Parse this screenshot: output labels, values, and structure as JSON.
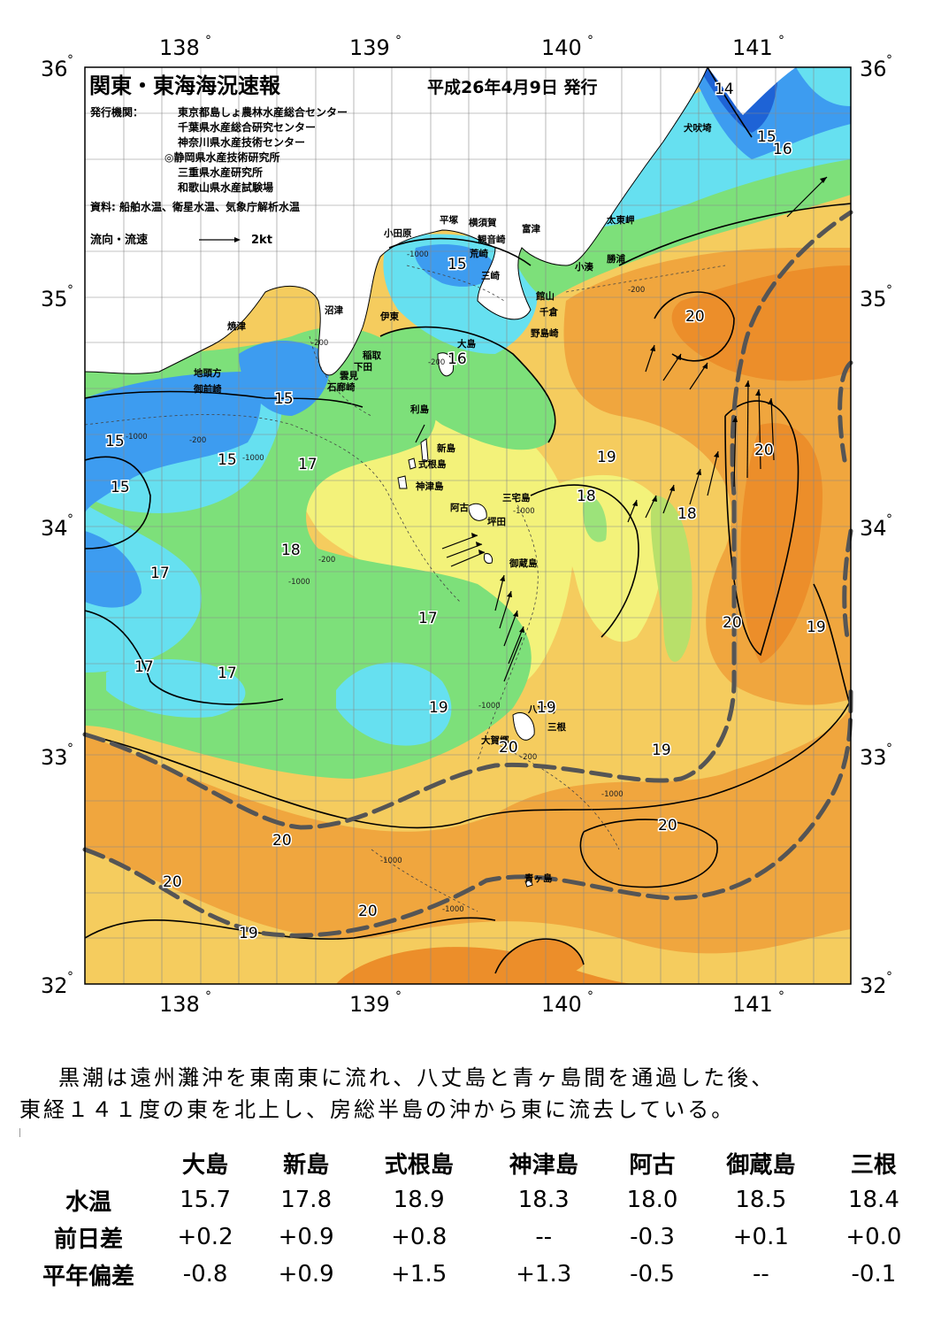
{
  "header": {
    "title": "関東・東海海況速報",
    "issue_date": "平成26年4月9日 発行",
    "publisher_label": "発行機関：",
    "publishers": [
      "東京都島しょ農林水産総合センター",
      "千葉県水産総合研究センター",
      "神奈川県水産技術センター",
      "◎静岡県水産技術研究所",
      "三重県水産研究所",
      "和歌山県水産試験場"
    ],
    "source": "資料: 船舶水温、衛星水温、気象庁解析水温",
    "flow_legend": "流向・流速",
    "flow_unit": "2kt"
  },
  "axes": {
    "lon_labels": [
      "138",
      "139",
      "140",
      "141"
    ],
    "lat_labels": [
      "36",
      "35",
      "34",
      "33",
      "32"
    ],
    "degree_symbol": "°"
  },
  "place_names": [
    {
      "name": "犬吠埼"
    },
    {
      "name": "太東岬"
    },
    {
      "name": "勝浦"
    },
    {
      "name": "小湊"
    },
    {
      "name": "富津"
    },
    {
      "name": "横須賀"
    },
    {
      "name": "観音崎"
    },
    {
      "name": "平塚"
    },
    {
      "name": "小田原"
    },
    {
      "name": "荒崎"
    },
    {
      "name": "三崎"
    },
    {
      "name": "館山"
    },
    {
      "name": "千倉"
    },
    {
      "name": "野島崎"
    },
    {
      "name": "沼津"
    },
    {
      "name": "伊東"
    },
    {
      "name": "焼津"
    },
    {
      "name": "稲取"
    },
    {
      "name": "下田"
    },
    {
      "name": "雲見"
    },
    {
      "name": "石廊崎"
    },
    {
      "name": "地頭方"
    },
    {
      "name": "御前崎"
    },
    {
      "name": "大島"
    },
    {
      "name": "利島"
    },
    {
      "name": "新島"
    },
    {
      "name": "式根島"
    },
    {
      "name": "神津島"
    },
    {
      "name": "三宅島"
    },
    {
      "name": "阿古"
    },
    {
      "name": "坪田"
    },
    {
      "name": "御蔵島"
    },
    {
      "name": "八丈島"
    },
    {
      "name": "三根"
    },
    {
      "name": "大賀郷"
    },
    {
      "name": "青ヶ島"
    }
  ],
  "isotherm_labels": [
    "14",
    "15",
    "16",
    "15",
    "16",
    "20",
    "20",
    "19",
    "18",
    "18",
    "20",
    "19",
    "17",
    "18",
    "17",
    "15",
    "15",
    "15",
    "15",
    "17",
    "17",
    "17",
    "19",
    "20",
    "19",
    "20",
    "20",
    "20",
    "19",
    "20",
    "19"
  ],
  "depth_labels": [
    "-1000",
    "-200",
    "-200",
    "-1000",
    "-200",
    "-1000",
    "-1000",
    "-200",
    "-1000",
    "-200",
    "-1000",
    "-1000",
    "-200",
    "-1000",
    "-1000"
  ],
  "summary": {
    "line1": "黒潮は遠州灘沖を東南東に流れ、八丈島と青ヶ島間を通過した後、",
    "line2": "東経１４１度の東を北上し、房総半島の沖から東に流去している。"
  },
  "table": {
    "columns": [
      "大島",
      "新島",
      "式根島",
      "神津島",
      "阿古",
      "御蔵島",
      "三根"
    ],
    "rows": [
      {
        "label": "水温",
        "values": [
          "15.7",
          "17.8",
          "18.9",
          "18.3",
          "18.0",
          "18.5",
          "18.4"
        ]
      },
      {
        "label": "前日差",
        "values": [
          "+0.2",
          "+0.9",
          "+0.8",
          "--",
          "-0.3",
          "+0.1",
          "+0.0"
        ]
      },
      {
        "label": "平年偏差",
        "values": [
          "-0.8",
          "+0.9",
          "+1.5",
          "+1.3",
          "-0.5",
          "--",
          "-0.1"
        ]
      }
    ]
  },
  "colors": {
    "t14": "#1e63d6",
    "t15": "#3d9cf0",
    "t16": "#66e0f0",
    "t17": "#7de07a",
    "t18": "#f3f27a",
    "t19": "#f5cc5e",
    "t20": "#f0a63e",
    "t21": "#ec8e2a",
    "land": "#ffffff",
    "kuroshio": "#555555"
  }
}
